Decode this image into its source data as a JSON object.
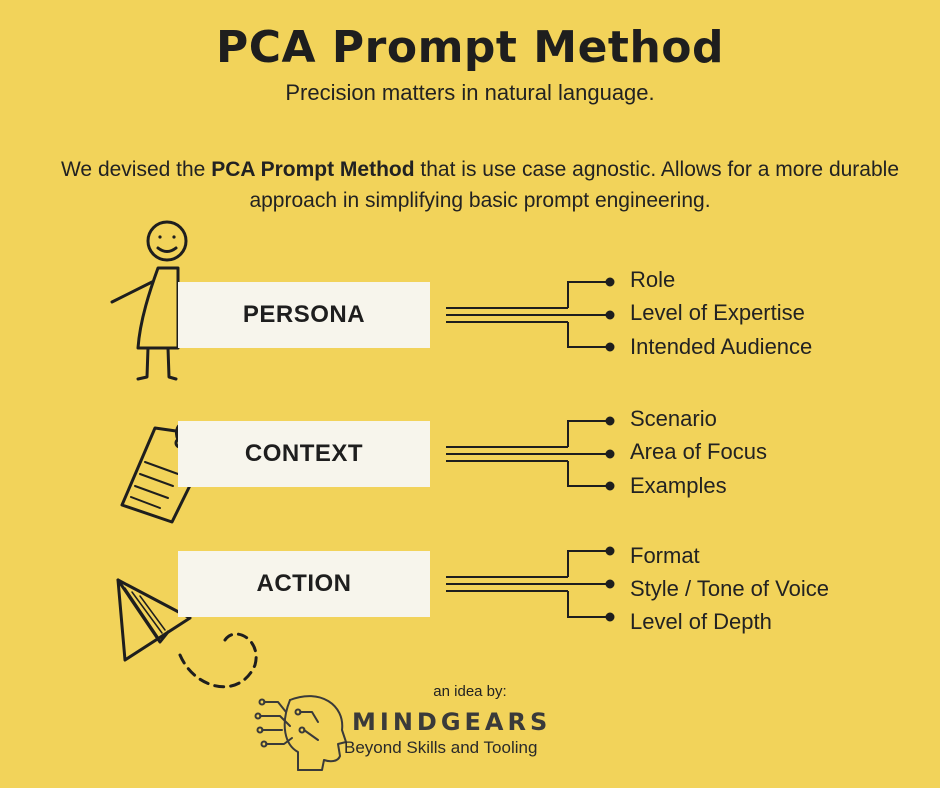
{
  "header": {
    "title": "PCA Prompt Method",
    "subtitle": "Precision matters in natural language."
  },
  "intro": {
    "before": "We devised the ",
    "bold": "PCA Prompt Method",
    "after": " that is use case agnostic.  Allows for a more durable approach in simplifying basic prompt engineering."
  },
  "sections": [
    {
      "label": "PERSONA",
      "icon": "stick-figure-icon",
      "items": [
        "Role",
        "Level of Expertise",
        "Intended Audience"
      ]
    },
    {
      "label": "CONTEXT",
      "icon": "tag-icon",
      "items": [
        "Scenario",
        "Area of Focus",
        "Examples"
      ]
    },
    {
      "label": "ACTION",
      "icon": "paper-plane-icon",
      "items": [
        "Format",
        "Style / Tone of Voice",
        "Level of Depth"
      ]
    }
  ],
  "credit": {
    "label": "an idea by:",
    "brand": "MINDGEARS",
    "tagline": "Beyond Skills and Tooling",
    "logo_icon": "circuit-head-icon"
  },
  "colors": {
    "background": "#f2d35a",
    "box": "#f7f5ec",
    "ink": "#1e1e1e"
  }
}
